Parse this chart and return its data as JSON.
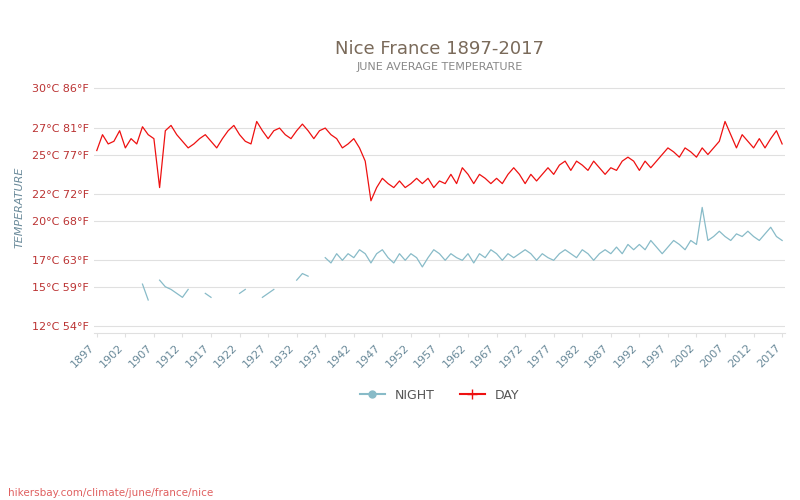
{
  "title": "Nice France 1897-2017",
  "subtitle": "JUNE AVERAGE TEMPERATURE",
  "ylabel": "TEMPERATURE",
  "watermark": "hikersbay.com/climate/june/france/nice",
  "title_color": "#7a6a5a",
  "subtitle_color": "#888888",
  "ylabel_color": "#6a8a9a",
  "background_color": "#ffffff",
  "grid_color": "#e0e0e0",
  "yticks_celsius": [
    12,
    15,
    17,
    20,
    22,
    25,
    27,
    30
  ],
  "yticks_fahrenheit": [
    54,
    59,
    63,
    68,
    72,
    77,
    81,
    86
  ],
  "year_start": 1897,
  "year_end": 2017,
  "year_step": 5,
  "day_color": "#ee1111",
  "night_color": "#88bbc8",
  "legend_night": "NIGHT",
  "legend_day": "DAY",
  "day_temps": [
    25.3,
    26.5,
    25.8,
    26.0,
    26.8,
    25.5,
    26.2,
    25.8,
    27.1,
    26.5,
    26.2,
    22.5,
    26.8,
    27.2,
    26.5,
    26.0,
    25.5,
    25.8,
    26.2,
    26.5,
    26.0,
    25.5,
    26.2,
    26.8,
    27.2,
    26.5,
    26.0,
    25.8,
    27.5,
    26.8,
    26.2,
    26.8,
    27.0,
    26.5,
    26.2,
    26.8,
    27.3,
    26.8,
    26.2,
    26.8,
    27.0,
    26.5,
    26.2,
    25.5,
    25.8,
    26.2,
    25.5,
    24.5,
    21.5,
    22.5,
    23.2,
    22.8,
    22.5,
    23.0,
    22.5,
    22.8,
    23.2,
    22.8,
    23.2,
    22.5,
    23.0,
    22.8,
    23.5,
    22.8,
    24.0,
    23.5,
    22.8,
    23.5,
    23.2,
    22.8,
    23.2,
    22.8,
    23.5,
    24.0,
    23.5,
    22.8,
    23.5,
    23.0,
    23.5,
    24.0,
    23.5,
    24.2,
    24.5,
    23.8,
    24.5,
    24.2,
    23.8,
    24.5,
    24.0,
    23.5,
    24.0,
    23.8,
    24.5,
    24.8,
    24.5,
    23.8,
    24.5,
    24.0,
    24.5,
    25.0,
    25.5,
    25.2,
    24.8,
    25.5,
    25.2,
    24.8,
    25.5,
    25.0,
    25.5,
    26.0,
    27.5,
    26.5,
    25.5,
    26.5,
    26.0,
    25.5,
    26.2,
    25.5,
    26.2,
    26.8,
    25.8
  ],
  "night_temps": [
    null,
    null,
    null,
    null,
    null,
    null,
    null,
    null,
    null,
    null,
    null,
    null,
    null,
    null,
    15.2,
    14.8,
    null,
    null,
    null,
    null,
    null,
    null,
    null,
    null,
    null,
    null,
    null,
    null,
    null,
    null,
    null,
    null,
    null,
    null,
    null,
    null,
    null,
    null,
    null,
    null,
    null,
    null,
    null,
    null,
    null,
    null,
    null,
    null,
    null,
    null,
    null,
    null,
    null,
    null,
    null,
    null,
    null,
    null,
    null,
    null,
    null,
    null,
    null,
    null,
    null,
    null,
    null,
    null,
    null,
    null,
    null,
    null,
    null,
    null,
    null,
    null,
    null,
    null,
    null,
    null,
    null,
    null,
    null,
    null,
    null,
    null,
    null,
    null,
    null,
    null,
    null,
    null,
    null,
    null,
    null,
    null,
    null,
    null,
    null,
    null,
    null,
    null,
    null,
    null,
    null,
    null,
    null,
    null,
    null,
    null,
    null,
    null,
    null,
    null,
    null,
    null,
    null,
    null,
    null,
    null,
    null
  ],
  "night_segments": [
    {
      "years": [
        1905,
        1906
      ],
      "temps": [
        15.2,
        14.0
      ]
    },
    {
      "years": [
        1908,
        1909,
        1910,
        1911,
        1912,
        1913
      ],
      "temps": [
        15.5,
        15.0,
        14.8,
        14.5,
        14.2,
        14.8
      ]
    },
    {
      "years": [
        1916,
        1917
      ],
      "temps": [
        14.5,
        14.2
      ]
    },
    {
      "years": [
        1922,
        1923
      ],
      "temps": [
        14.5,
        14.8
      ]
    },
    {
      "years": [
        1926,
        1927,
        1928
      ],
      "temps": [
        14.2,
        14.5,
        14.8
      ]
    },
    {
      "years": [
        1932,
        1933,
        1934
      ],
      "temps": [
        15.5,
        16.0,
        15.8
      ]
    },
    {
      "years": [
        1937,
        1938,
        1939,
        1940,
        1941,
        1942,
        1943,
        1944,
        1945,
        1946,
        1947,
        1948,
        1949,
        1950,
        1951,
        1952,
        1953,
        1954,
        1955,
        1956,
        1957,
        1958,
        1959,
        1960,
        1961,
        1962,
        1963,
        1964,
        1965,
        1966,
        1967,
        1968,
        1969,
        1970,
        1971,
        1972,
        1973,
        1974,
        1975,
        1976,
        1977,
        1978,
        1979,
        1980,
        1981,
        1982,
        1983,
        1984,
        1985,
        1986,
        1987,
        1988,
        1989,
        1990,
        1991,
        1992,
        1993,
        1994,
        1995,
        1996,
        1997,
        1998,
        1999,
        2000,
        2001,
        2002,
        2003,
        2004,
        2005,
        2006,
        2007,
        2008,
        2009,
        2010,
        2011,
        2012,
        2013,
        2014,
        2015,
        2016,
        2017
      ],
      "temps": [
        17.2,
        16.8,
        17.5,
        17.0,
        17.5,
        17.2,
        17.8,
        17.5,
        16.8,
        17.5,
        17.8,
        17.2,
        16.8,
        17.5,
        17.0,
        17.5,
        17.2,
        16.5,
        17.2,
        17.8,
        17.5,
        17.0,
        17.5,
        17.2,
        17.0,
        17.5,
        16.8,
        17.5,
        17.2,
        17.8,
        17.5,
        17.0,
        17.5,
        17.2,
        17.5,
        17.8,
        17.5,
        17.0,
        17.5,
        17.2,
        17.0,
        17.5,
        17.8,
        17.5,
        17.2,
        17.8,
        17.5,
        17.0,
        17.5,
        17.8,
        17.5,
        18.0,
        17.5,
        18.2,
        17.8,
        18.2,
        17.8,
        18.5,
        18.0,
        17.5,
        18.0,
        18.5,
        18.2,
        17.8,
        18.5,
        18.2,
        21.0,
        18.5,
        18.8,
        19.2,
        18.8,
        18.5,
        19.0,
        18.8,
        19.2,
        18.8,
        18.5,
        19.0,
        19.5,
        18.8,
        18.5
      ]
    }
  ]
}
